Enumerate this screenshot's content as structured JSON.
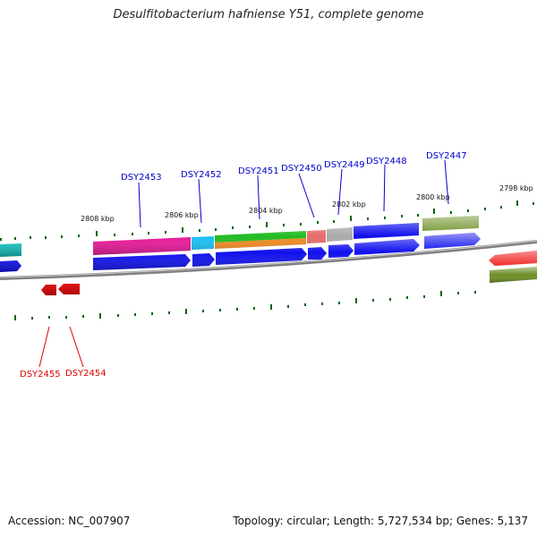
{
  "title": "Desulfitobacterium hafniense Y51, complete genome",
  "footer": {
    "accession": "Accession: NC_007907",
    "topology": "Topology: circular; Length: 5,727,534 bp; Genes: 5,137"
  },
  "colors": {
    "forward_label": "#0000cc",
    "reverse_label": "#dd0000",
    "tick": "#006600",
    "backbone": "#808080"
  },
  "kbp_labels": [
    "2808 kbp",
    "2806 kbp",
    "2804 kbp",
    "2802 kbp",
    "2800 kbp",
    "2798 kbp"
  ],
  "gene_labels": [
    {
      "id": "DSY2453",
      "strand": "forward"
    },
    {
      "id": "DSY2452",
      "strand": "forward"
    },
    {
      "id": "DSY2451",
      "strand": "forward"
    },
    {
      "id": "DSY2450",
      "strand": "forward"
    },
    {
      "id": "DSY2449",
      "strand": "forward"
    },
    {
      "id": "DSY2448",
      "strand": "forward"
    },
    {
      "id": "DSY2447",
      "strand": "forward"
    },
    {
      "id": "DSY2455",
      "strand": "reverse"
    },
    {
      "id": "DSY2454",
      "strand": "reverse"
    }
  ]
}
